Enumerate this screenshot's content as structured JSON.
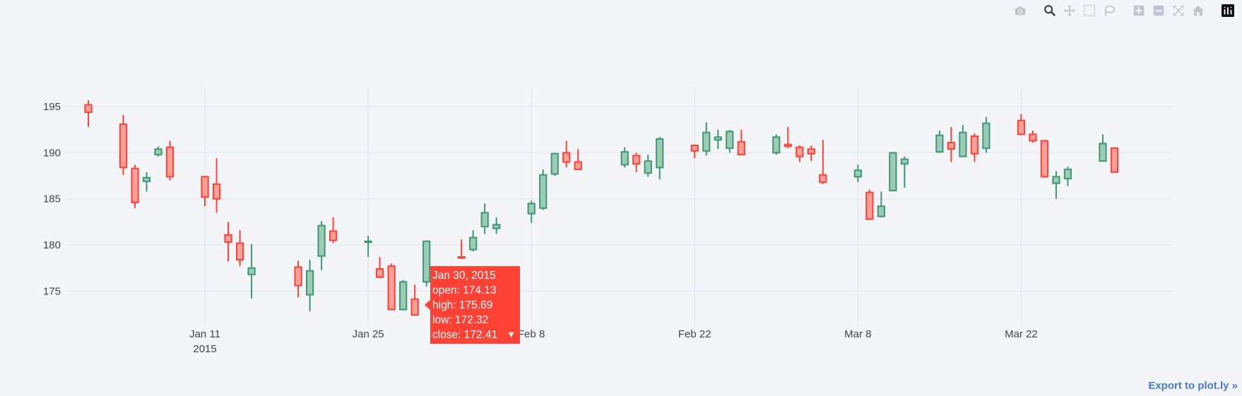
{
  "modebar": {
    "buttons": [
      {
        "name": "camera-icon",
        "title": "Download plot as a png"
      },
      {
        "name": "zoom-icon",
        "title": "Zoom"
      },
      {
        "name": "pan-icon",
        "title": "Pan"
      },
      {
        "name": "box-select-icon",
        "title": "Box Select"
      },
      {
        "name": "lasso-select-icon",
        "title": "Lasso Select"
      },
      {
        "name": "zoom-in-icon",
        "title": "Zoom in"
      },
      {
        "name": "zoom-out-icon",
        "title": "Zoom out"
      },
      {
        "name": "autoscale-icon",
        "title": "Autoscale"
      },
      {
        "name": "reset-axes-icon",
        "title": "Reset axes"
      },
      {
        "name": "plotly-logo-icon",
        "title": "Produced with Plotly"
      }
    ]
  },
  "export_link": "Export to plot.ly »",
  "colors": {
    "increasing": "#3d9970",
    "decreasing": "#ff4136",
    "increasing_fill": "#9ecbb7",
    "decreasing_fill": "#ff9f9a",
    "grid": "#e1e3ea",
    "axis_text": "#444444",
    "background": "#f4f5f9",
    "active_icon": "#444444",
    "inactive_icon": "#bfc5d0"
  },
  "hover": {
    "date": "Jan 30, 2015",
    "open": "open: 174.13",
    "high": "high: 175.69",
    "low": "low: 172.32",
    "close": "close: 172.41",
    "arrow": "▼"
  },
  "chart_data": {
    "type": "candlestick",
    "title": "",
    "xlabel": "",
    "ylabel": "",
    "xlim": [
      "2014-12-30",
      "2015-04-04"
    ],
    "ylim": [
      171.2,
      197.0
    ],
    "grid": true,
    "legend": "none",
    "x_ticks": [
      {
        "date": "2015-01-11",
        "label": "Jan 11",
        "sub": "2015"
      },
      {
        "date": "2015-01-25",
        "label": "Jan 25",
        "sub": ""
      },
      {
        "date": "2015-02-08",
        "label": "Feb 8",
        "sub": ""
      },
      {
        "date": "2015-02-22",
        "label": "Feb 22",
        "sub": ""
      },
      {
        "date": "2015-03-08",
        "label": "Mar 8",
        "sub": ""
      },
      {
        "date": "2015-03-22",
        "label": "Mar 22",
        "sub": ""
      }
    ],
    "y_ticks": [
      175,
      180,
      185,
      190,
      195
    ],
    "x": [
      "2015-01-01",
      "2015-01-04",
      "2015-01-05",
      "2015-01-06",
      "2015-01-07",
      "2015-01-08",
      "2015-01-11",
      "2015-01-12",
      "2015-01-13",
      "2015-01-14",
      "2015-01-15",
      "2015-01-19",
      "2015-01-20",
      "2015-01-21",
      "2015-01-22",
      "2015-01-25",
      "2015-01-26",
      "2015-01-27",
      "2015-01-28",
      "2015-01-29",
      "2015-01-30",
      "2015-02-02",
      "2015-02-03",
      "2015-02-04",
      "2015-02-05",
      "2015-02-08",
      "2015-02-09",
      "2015-02-10",
      "2015-02-11",
      "2015-02-12",
      "2015-02-16",
      "2015-02-17",
      "2015-02-18",
      "2015-02-19",
      "2015-02-22",
      "2015-02-23",
      "2015-02-24",
      "2015-02-25",
      "2015-02-26",
      "2015-03-01",
      "2015-03-02",
      "2015-03-03",
      "2015-03-04",
      "2015-03-05",
      "2015-03-08",
      "2015-03-09",
      "2015-03-10",
      "2015-03-11",
      "2015-03-12",
      "2015-03-15",
      "2015-03-16",
      "2015-03-17",
      "2015-03-18",
      "2015-03-19",
      "2015-03-22",
      "2015-03-23",
      "2015-03-24",
      "2015-03-25",
      "2015-03-26",
      "2015-03-29",
      "2015-03-30"
    ],
    "open": [
      195.2,
      193.1,
      188.3,
      186.9,
      189.8,
      190.6,
      187.4,
      186.6,
      181.1,
      180.2,
      176.8,
      177.6,
      174.6,
      178.8,
      181.5,
      180.4,
      177.4,
      177.7,
      173.0,
      174.13,
      176.0,
      178.7,
      179.5,
      182.0,
      181.8,
      183.4,
      184.0,
      187.7,
      190.0,
      189.0,
      188.7,
      189.7,
      187.8,
      188.4,
      190.8,
      190.2,
      191.4,
      190.5,
      191.2,
      190.0,
      190.9,
      190.6,
      190.4,
      187.6,
      187.4,
      185.7,
      183.1,
      185.9,
      188.8,
      190.1,
      191.1,
      189.6,
      191.8,
      190.5,
      193.5,
      192.0,
      191.3,
      186.7,
      187.2,
      189.1,
      190.5
    ],
    "close": [
      194.4,
      188.4,
      184.6,
      187.3,
      190.4,
      187.4,
      185.2,
      185.0,
      180.3,
      178.4,
      177.5,
      175.6,
      177.2,
      182.1,
      180.5,
      180.4,
      176.5,
      173.0,
      176.0,
      172.41,
      180.4,
      178.6,
      180.8,
      183.5,
      182.2,
      184.5,
      187.6,
      189.9,
      189.0,
      188.2,
      190.1,
      188.8,
      189.1,
      191.5,
      190.2,
      192.2,
      191.7,
      192.3,
      189.8,
      191.7,
      190.7,
      189.6,
      189.9,
      186.8,
      188.1,
      182.8,
      184.2,
      190.0,
      189.3,
      191.9,
      190.4,
      192.2,
      189.9,
      193.2,
      192.0,
      191.3,
      187.4,
      187.4,
      188.2,
      191.0,
      187.9
    ],
    "high": [
      195.7,
      194.1,
      188.7,
      187.9,
      190.7,
      191.3,
      187.5,
      189.4,
      182.5,
      181.6,
      180.1,
      178.3,
      178.4,
      182.6,
      183.0,
      181.0,
      178.7,
      178.0,
      176.2,
      175.69,
      180.5,
      180.6,
      181.6,
      184.5,
      183.0,
      184.8,
      188.2,
      190.0,
      191.3,
      190.4,
      190.6,
      190.0,
      189.8,
      191.7,
      190.9,
      193.3,
      192.5,
      192.5,
      192.5,
      192.0,
      192.8,
      190.8,
      190.8,
      191.4,
      188.7,
      186.0,
      185.8,
      190.1,
      189.6,
      192.4,
      192.8,
      193.0,
      192.1,
      193.9,
      194.2,
      192.4,
      191.4,
      188.0,
      188.5,
      192.0,
      190.6
    ],
    "low": [
      192.8,
      187.6,
      184.0,
      185.8,
      189.6,
      187.0,
      184.2,
      183.5,
      178.2,
      177.7,
      174.2,
      174.3,
      172.8,
      177.3,
      180.2,
      178.7,
      176.4,
      172.9,
      172.9,
      172.32,
      175.5,
      178.5,
      179.3,
      181.2,
      181.2,
      182.4,
      183.8,
      187.5,
      188.4,
      188.4,
      188.4,
      187.9,
      187.4,
      187.1,
      189.4,
      189.7,
      190.4,
      190.0,
      189.8,
      189.8,
      190.5,
      189.0,
      189.1,
      186.6,
      186.8,
      182.7,
      183.0,
      186.0,
      186.2,
      190.0,
      189.0,
      189.6,
      189.0,
      190.0,
      191.9,
      191.1,
      187.3,
      185.0,
      186.4,
      189.1,
      187.9
    ]
  }
}
